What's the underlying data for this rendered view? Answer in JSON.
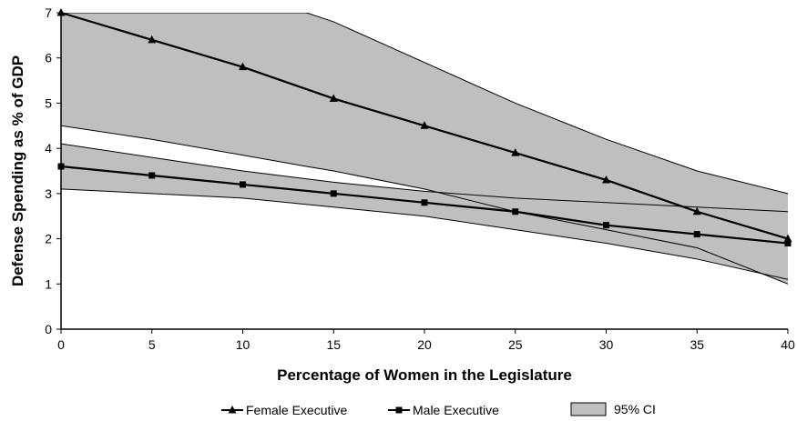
{
  "chart_data": {
    "type": "line",
    "title": "",
    "xlabel": "Percentage of Women in the Legislature",
    "ylabel": "Defense Spending as % of GDP",
    "xlim": [
      0,
      40
    ],
    "ylim": [
      0,
      7
    ],
    "x_ticks": [
      0,
      5,
      10,
      15,
      20,
      25,
      30,
      35,
      40
    ],
    "y_ticks": [
      0,
      1,
      2,
      3,
      4,
      5,
      6,
      7
    ],
    "grid": false,
    "legend_position": "bottom",
    "colors": {
      "line": "#000000",
      "ci_fill": "#bfbfbf",
      "ci_edge": "#000000"
    },
    "series": [
      {
        "name": "Female Executive",
        "marker": "triangle",
        "x": [
          0,
          5,
          10,
          15,
          20,
          25,
          30,
          35,
          40
        ],
        "values": [
          7.0,
          6.4,
          5.8,
          5.1,
          4.5,
          3.9,
          3.3,
          2.6,
          2.0
        ]
      },
      {
        "name": "Male Executive",
        "marker": "square",
        "x": [
          0,
          5,
          10,
          15,
          20,
          25,
          30,
          35,
          40
        ],
        "values": [
          3.6,
          3.4,
          3.2,
          3.0,
          2.8,
          2.6,
          2.3,
          2.1,
          1.9
        ]
      }
    ],
    "confidence_bands": [
      {
        "name": "95% CI",
        "of": "Female Executive",
        "x": [
          0,
          5,
          10,
          13.5,
          15,
          20,
          25,
          30,
          35,
          40
        ],
        "upper": [
          7.0,
          7.0,
          7.0,
          7.0,
          6.8,
          5.9,
          5.0,
          4.2,
          3.5,
          3.0
        ],
        "lower": [
          4.5,
          4.2,
          3.85,
          3.6,
          3.5,
          3.1,
          2.6,
          2.2,
          1.8,
          1.0
        ]
      },
      {
        "name": "95% CI",
        "of": "Male Executive",
        "x": [
          0,
          5,
          10,
          15,
          20,
          25,
          30,
          35,
          40
        ],
        "upper": [
          4.1,
          3.8,
          3.5,
          3.25,
          3.05,
          2.9,
          2.8,
          2.7,
          2.6
        ],
        "lower": [
          3.1,
          3.0,
          2.9,
          2.7,
          2.5,
          2.2,
          1.9,
          1.55,
          1.1
        ]
      }
    ],
    "legend": [
      {
        "label": "Female Executive",
        "kind": "line-triangle"
      },
      {
        "label": "Male Executive",
        "kind": "line-square"
      },
      {
        "label": "95% CI",
        "kind": "box"
      }
    ]
  }
}
